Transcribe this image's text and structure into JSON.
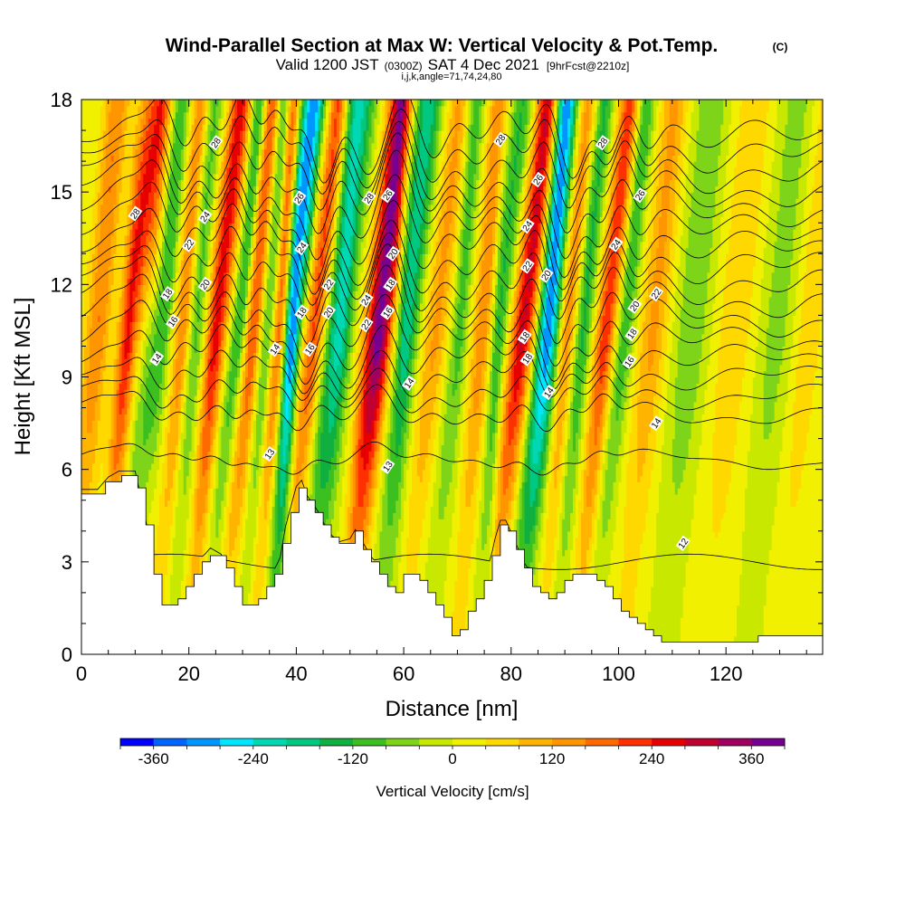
{
  "chart_data": {
    "type": "heatmap",
    "title": "Wind-Parallel Section at Max W: Vertical Velocity & Pot.Temp.",
    "title_mark": "(C)",
    "subtitle_main": "Valid 1200 JST",
    "subtitle_utc": "(0300Z)",
    "subtitle_date": "SAT 4 Dec 2021",
    "subtitle_fcst": "[9hrFcst@2210z]",
    "subtitle_index": "i,j,k,angle=71,74,24,80",
    "xlabel": "Distance [nm]",
    "ylabel": "Height [Kft MSL]",
    "xlim": [
      0,
      138
    ],
    "ylim": [
      0,
      18
    ],
    "x_ticks": [
      "0",
      "20",
      "40",
      "60",
      "80",
      "100",
      "120"
    ],
    "y_ticks": [
      "0",
      "3",
      "6",
      "9",
      "12",
      "15",
      "18"
    ],
    "colorbar_label": "Vertical Velocity [cm/s]",
    "colorbar_ticks": [
      "-360",
      "-240",
      "-120",
      "0",
      "120",
      "240",
      "360"
    ],
    "colorbar_range": [
      -400,
      400
    ],
    "colorbar_colors": [
      "#0000ff",
      "#0064ff",
      "#0096ff",
      "#00e6ff",
      "#00d8b4",
      "#00c880",
      "#10b040",
      "#3cc020",
      "#7ed418",
      "#c8e800",
      "#f0f000",
      "#ffd800",
      "#ffb400",
      "#ff9600",
      "#ff6a00",
      "#ff3000",
      "#e60000",
      "#c00030",
      "#a00060",
      "#780090"
    ],
    "w_features": [
      {
        "x": 5,
        "w": 150,
        "hw": 2.4
      },
      {
        "x": 11,
        "w": 240,
        "hw": 1.8
      },
      {
        "x": 15,
        "w": -130,
        "hw": 1.6
      },
      {
        "x": 19,
        "w": 140,
        "hw": 1.6
      },
      {
        "x": 22,
        "w": -100,
        "hw": 1.6
      },
      {
        "x": 26,
        "w": 250,
        "hw": 1.8
      },
      {
        "x": 29.5,
        "w": -140,
        "hw": 1.5
      },
      {
        "x": 32,
        "w": 200,
        "hw": 1.6
      },
      {
        "x": 35,
        "w": -110,
        "hw": 1.5
      },
      {
        "x": 37.5,
        "w": 170,
        "hw": 1.6
      },
      {
        "x": 41,
        "w": -330,
        "hw": 1.9
      },
      {
        "x": 45,
        "w": 210,
        "hw": 1.7
      },
      {
        "x": 49,
        "w": -230,
        "hw": 2.4
      },
      {
        "x": 56,
        "w": 370,
        "hw": 2.2
      },
      {
        "x": 61,
        "w": -200,
        "hw": 2.2
      },
      {
        "x": 66,
        "w": 120,
        "hw": 2.0
      },
      {
        "x": 70,
        "w": -110,
        "hw": 1.8
      },
      {
        "x": 75,
        "w": 140,
        "hw": 2.2
      },
      {
        "x": 79,
        "w": -140,
        "hw": 1.8
      },
      {
        "x": 83,
        "w": 280,
        "hw": 1.9
      },
      {
        "x": 87,
        "w": -330,
        "hw": 2.0
      },
      {
        "x": 91,
        "w": 130,
        "hw": 1.6
      },
      {
        "x": 94,
        "w": -140,
        "hw": 1.5
      },
      {
        "x": 98,
        "w": 220,
        "hw": 1.7
      },
      {
        "x": 101,
        "w": -130,
        "hw": 1.6
      },
      {
        "x": 106,
        "w": 120,
        "hw": 2.4
      },
      {
        "x": 113,
        "w": -90,
        "hw": 3.0
      },
      {
        "x": 121,
        "w": 70,
        "hw": 3.0
      },
      {
        "x": 129,
        "w": -70,
        "hw": 3.0
      },
      {
        "x": 135,
        "w": 60,
        "hw": 2.5
      }
    ],
    "terrain": [
      {
        "x": 0,
        "h": 5.2
      },
      {
        "x": 3,
        "h": 5.2
      },
      {
        "x": 5,
        "h": 5.6
      },
      {
        "x": 7,
        "h": 5.8
      },
      {
        "x": 10,
        "h": 5.8
      },
      {
        "x": 11,
        "h": 5.0
      },
      {
        "x": 12,
        "h": 4.2
      },
      {
        "x": 13,
        "h": 3.0
      },
      {
        "x": 14,
        "h": 2.0
      },
      {
        "x": 15,
        "h": 1.6
      },
      {
        "x": 17,
        "h": 1.6
      },
      {
        "x": 18,
        "h": 1.8
      },
      {
        "x": 20,
        "h": 2.3
      },
      {
        "x": 22,
        "h": 2.9
      },
      {
        "x": 24,
        "h": 3.3
      },
      {
        "x": 26,
        "h": 3.1
      },
      {
        "x": 28,
        "h": 2.4
      },
      {
        "x": 29,
        "h": 2.0
      },
      {
        "x": 30,
        "h": 1.6
      },
      {
        "x": 32,
        "h": 1.7
      },
      {
        "x": 34,
        "h": 2.0
      },
      {
        "x": 36,
        "h": 2.6
      },
      {
        "x": 37,
        "h": 3.0
      },
      {
        "x": 38,
        "h": 4.0
      },
      {
        "x": 40,
        "h": 5.3
      },
      {
        "x": 41,
        "h": 5.5
      },
      {
        "x": 42,
        "h": 5.0
      },
      {
        "x": 44,
        "h": 4.5
      },
      {
        "x": 46,
        "h": 3.8
      },
      {
        "x": 48,
        "h": 3.5
      },
      {
        "x": 50,
        "h": 3.6
      },
      {
        "x": 51,
        "h": 3.9
      },
      {
        "x": 52,
        "h": 3.6
      },
      {
        "x": 54,
        "h": 3.0
      },
      {
        "x": 56,
        "h": 2.4
      },
      {
        "x": 58,
        "h": 2.0
      },
      {
        "x": 59,
        "h": 2.0
      },
      {
        "x": 60,
        "h": 2.5
      },
      {
        "x": 62,
        "h": 2.6
      },
      {
        "x": 64,
        "h": 2.2
      },
      {
        "x": 66,
        "h": 1.5
      },
      {
        "x": 68,
        "h": 1.0
      },
      {
        "x": 69,
        "h": 0.6
      },
      {
        "x": 70,
        "h": 0.6
      },
      {
        "x": 72,
        "h": 1.4
      },
      {
        "x": 74,
        "h": 2.0
      },
      {
        "x": 76,
        "h": 2.8
      },
      {
        "x": 77,
        "h": 3.6
      },
      {
        "x": 78,
        "h": 4.2
      },
      {
        "x": 79,
        "h": 4.2
      },
      {
        "x": 80,
        "h": 3.8
      },
      {
        "x": 82,
        "h": 3.0
      },
      {
        "x": 84,
        "h": 2.2
      },
      {
        "x": 86,
        "h": 1.8
      },
      {
        "x": 88,
        "h": 1.9
      },
      {
        "x": 90,
        "h": 2.4
      },
      {
        "x": 92,
        "h": 2.6
      },
      {
        "x": 95,
        "h": 2.6
      },
      {
        "x": 97,
        "h": 2.3
      },
      {
        "x": 99,
        "h": 1.8
      },
      {
        "x": 101,
        "h": 1.2
      },
      {
        "x": 103,
        "h": 1.0
      },
      {
        "x": 105,
        "h": 0.8
      },
      {
        "x": 107,
        "h": 0.5
      },
      {
        "x": 109,
        "h": 0.4
      },
      {
        "x": 118,
        "h": 0.4
      },
      {
        "x": 125,
        "h": 0.4
      },
      {
        "x": 127,
        "h": 0.7
      },
      {
        "x": 138,
        "h": 0.7
      }
    ],
    "theta_levels": [
      12,
      13,
      14,
      15,
      16,
      17,
      18,
      19,
      20,
      21,
      22,
      23,
      24,
      25,
      26,
      27,
      28,
      29
    ],
    "theta_labels": [
      {
        "text": "28",
        "x": 25,
        "y": 16.6
      },
      {
        "text": "28",
        "x": 10,
        "y": 14.3
      },
      {
        "text": "24",
        "x": 23,
        "y": 14.2
      },
      {
        "text": "22",
        "x": 20,
        "y": 13.3
      },
      {
        "text": "20",
        "x": 23,
        "y": 12.0
      },
      {
        "text": "18",
        "x": 16,
        "y": 11.7
      },
      {
        "text": "16",
        "x": 17,
        "y": 10.8
      },
      {
        "text": "14",
        "x": 14,
        "y": 9.6
      },
      {
        "text": "14",
        "x": 36,
        "y": 9.9
      },
      {
        "text": "13",
        "x": 35,
        "y": 6.5
      },
      {
        "text": "26",
        "x": 40.5,
        "y": 14.8
      },
      {
        "text": "24",
        "x": 41,
        "y": 13.2
      },
      {
        "text": "22",
        "x": 46,
        "y": 12.0
      },
      {
        "text": "20",
        "x": 46,
        "y": 11.1
      },
      {
        "text": "18",
        "x": 41,
        "y": 11.1
      },
      {
        "text": "16",
        "x": 42.5,
        "y": 9.9
      },
      {
        "text": "28",
        "x": 53.5,
        "y": 14.8
      },
      {
        "text": "26",
        "x": 57,
        "y": 14.9
      },
      {
        "text": "24",
        "x": 53,
        "y": 11.5
      },
      {
        "text": "22",
        "x": 53,
        "y": 10.7
      },
      {
        "text": "20",
        "x": 58,
        "y": 13.0
      },
      {
        "text": "18",
        "x": 57.5,
        "y": 12.0
      },
      {
        "text": "16",
        "x": 57,
        "y": 11.1
      },
      {
        "text": "14",
        "x": 61,
        "y": 8.8
      },
      {
        "text": "13",
        "x": 57,
        "y": 6.1
      },
      {
        "text": "28",
        "x": 78,
        "y": 16.7
      },
      {
        "text": "26",
        "x": 85,
        "y": 15.4
      },
      {
        "text": "24",
        "x": 83,
        "y": 13.9
      },
      {
        "text": "22",
        "x": 83,
        "y": 12.6
      },
      {
        "text": "20",
        "x": 86.5,
        "y": 12.3
      },
      {
        "text": "18",
        "x": 82.5,
        "y": 10.3
      },
      {
        "text": "18",
        "x": 83,
        "y": 9.6
      },
      {
        "text": "14",
        "x": 87,
        "y": 8.5
      },
      {
        "text": "28",
        "x": 97,
        "y": 16.6
      },
      {
        "text": "26",
        "x": 104,
        "y": 14.9
      },
      {
        "text": "24",
        "x": 99.5,
        "y": 13.3
      },
      {
        "text": "22",
        "x": 107,
        "y": 11.7
      },
      {
        "text": "20",
        "x": 103,
        "y": 11.3
      },
      {
        "text": "18",
        "x": 102.5,
        "y": 10.4
      },
      {
        "text": "16",
        "x": 102,
        "y": 9.5
      },
      {
        "text": "14",
        "x": 107,
        "y": 7.5
      },
      {
        "text": "12",
        "x": 112,
        "y": 3.6
      }
    ],
    "grid": false
  }
}
